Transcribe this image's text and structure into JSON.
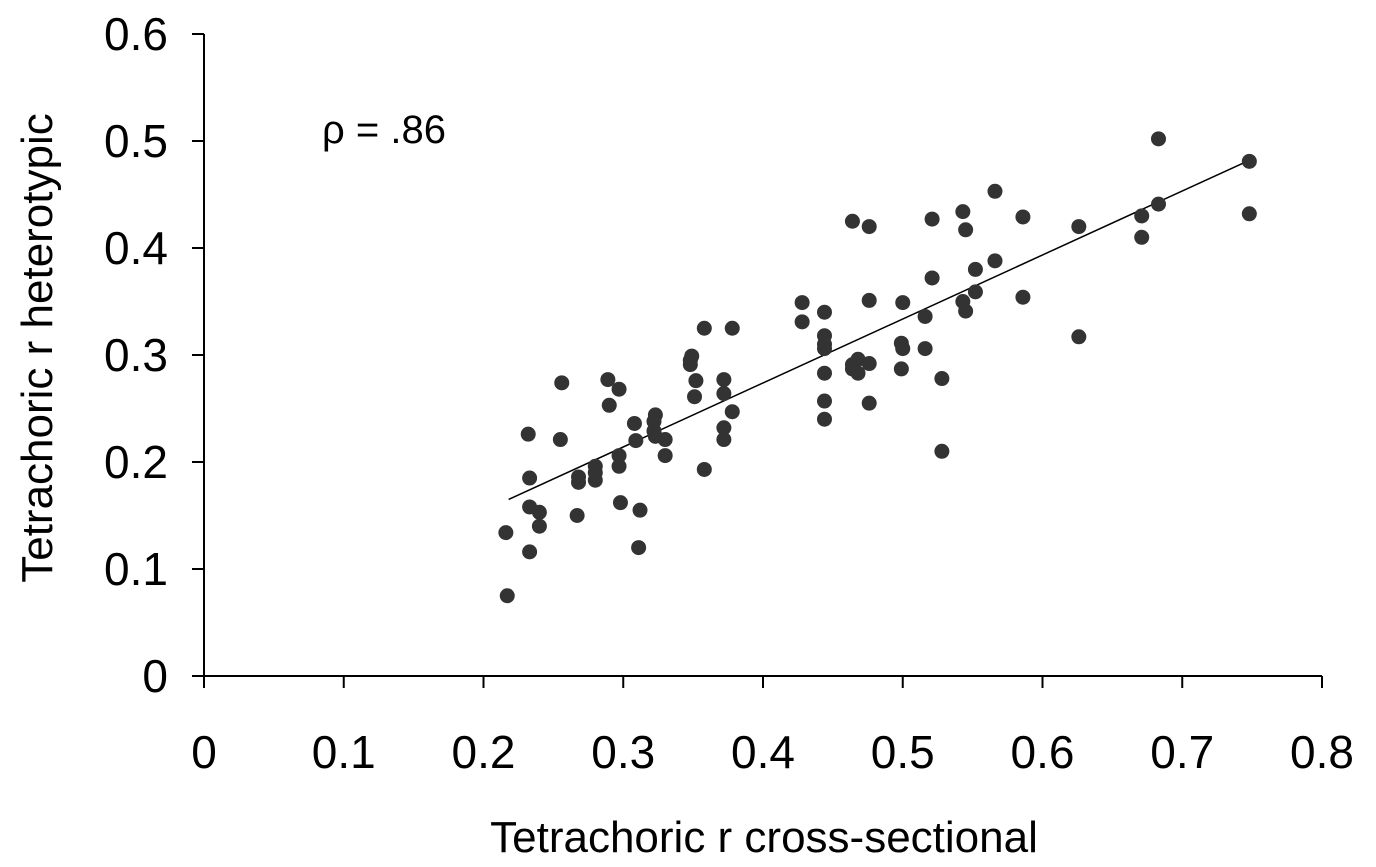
{
  "chart_data": {
    "type": "scatter",
    "title": "",
    "xlabel": "Tetrachoric r cross-sectional",
    "ylabel": "Tetrachoric r heterotypic",
    "xlim": [
      0,
      0.8
    ],
    "ylim": [
      0,
      0.6
    ],
    "x_ticks": [
      "0",
      "0.1",
      "0.2",
      "0.3",
      "0.4",
      "0.5",
      "0.6",
      "0.7",
      "0.8"
    ],
    "y_ticks": [
      "0",
      "0.1",
      "0.2",
      "0.3",
      "0.4",
      "0.5",
      "0.6"
    ],
    "annotation": "ρ = .86",
    "grid": false,
    "legend": "none",
    "point_color": "#333333",
    "trendline": {
      "x": [
        0.218,
        0.748
      ],
      "y": [
        0.165,
        0.482
      ]
    },
    "points": [
      {
        "x": 0.216,
        "y": 0.134
      },
      {
        "x": 0.217,
        "y": 0.075
      },
      {
        "x": 0.232,
        "y": 0.226
      },
      {
        "x": 0.233,
        "y": 0.185
      },
      {
        "x": 0.233,
        "y": 0.158
      },
      {
        "x": 0.233,
        "y": 0.116
      },
      {
        "x": 0.24,
        "y": 0.153
      },
      {
        "x": 0.24,
        "y": 0.14
      },
      {
        "x": 0.255,
        "y": 0.221
      },
      {
        "x": 0.256,
        "y": 0.274
      },
      {
        "x": 0.267,
        "y": 0.15
      },
      {
        "x": 0.268,
        "y": 0.186
      },
      {
        "x": 0.268,
        "y": 0.181
      },
      {
        "x": 0.28,
        "y": 0.196
      },
      {
        "x": 0.28,
        "y": 0.19
      },
      {
        "x": 0.28,
        "y": 0.183
      },
      {
        "x": 0.289,
        "y": 0.277
      },
      {
        "x": 0.29,
        "y": 0.253
      },
      {
        "x": 0.297,
        "y": 0.268
      },
      {
        "x": 0.297,
        "y": 0.206
      },
      {
        "x": 0.297,
        "y": 0.196
      },
      {
        "x": 0.298,
        "y": 0.162
      },
      {
        "x": 0.308,
        "y": 0.236
      },
      {
        "x": 0.309,
        "y": 0.22
      },
      {
        "x": 0.312,
        "y": 0.155
      },
      {
        "x": 0.311,
        "y": 0.12
      },
      {
        "x": 0.322,
        "y": 0.238
      },
      {
        "x": 0.323,
        "y": 0.244
      },
      {
        "x": 0.322,
        "y": 0.229
      },
      {
        "x": 0.323,
        "y": 0.224
      },
      {
        "x": 0.33,
        "y": 0.221
      },
      {
        "x": 0.33,
        "y": 0.206
      },
      {
        "x": 0.348,
        "y": 0.295
      },
      {
        "x": 0.349,
        "y": 0.299
      },
      {
        "x": 0.348,
        "y": 0.291
      },
      {
        "x": 0.352,
        "y": 0.276
      },
      {
        "x": 0.351,
        "y": 0.261
      },
      {
        "x": 0.358,
        "y": 0.325
      },
      {
        "x": 0.358,
        "y": 0.193
      },
      {
        "x": 0.372,
        "y": 0.277
      },
      {
        "x": 0.372,
        "y": 0.264
      },
      {
        "x": 0.372,
        "y": 0.232
      },
      {
        "x": 0.372,
        "y": 0.221
      },
      {
        "x": 0.378,
        "y": 0.325
      },
      {
        "x": 0.378,
        "y": 0.247
      },
      {
        "x": 0.428,
        "y": 0.349
      },
      {
        "x": 0.428,
        "y": 0.331
      },
      {
        "x": 0.444,
        "y": 0.34
      },
      {
        "x": 0.444,
        "y": 0.318
      },
      {
        "x": 0.444,
        "y": 0.31
      },
      {
        "x": 0.444,
        "y": 0.306
      },
      {
        "x": 0.444,
        "y": 0.283
      },
      {
        "x": 0.444,
        "y": 0.257
      },
      {
        "x": 0.444,
        "y": 0.24
      },
      {
        "x": 0.464,
        "y": 0.425
      },
      {
        "x": 0.464,
        "y": 0.291
      },
      {
        "x": 0.464,
        "y": 0.287
      },
      {
        "x": 0.468,
        "y": 0.296
      },
      {
        "x": 0.468,
        "y": 0.283
      },
      {
        "x": 0.476,
        "y": 0.42
      },
      {
        "x": 0.476,
        "y": 0.351
      },
      {
        "x": 0.476,
        "y": 0.292
      },
      {
        "x": 0.476,
        "y": 0.255
      },
      {
        "x": 0.499,
        "y": 0.311
      },
      {
        "x": 0.499,
        "y": 0.287
      },
      {
        "x": 0.5,
        "y": 0.349
      },
      {
        "x": 0.5,
        "y": 0.306
      },
      {
        "x": 0.516,
        "y": 0.336
      },
      {
        "x": 0.516,
        "y": 0.306
      },
      {
        "x": 0.521,
        "y": 0.427
      },
      {
        "x": 0.521,
        "y": 0.372
      },
      {
        "x": 0.528,
        "y": 0.278
      },
      {
        "x": 0.528,
        "y": 0.21
      },
      {
        "x": 0.543,
        "y": 0.434
      },
      {
        "x": 0.543,
        "y": 0.35
      },
      {
        "x": 0.545,
        "y": 0.417
      },
      {
        "x": 0.545,
        "y": 0.341
      },
      {
        "x": 0.552,
        "y": 0.38
      },
      {
        "x": 0.552,
        "y": 0.359
      },
      {
        "x": 0.566,
        "y": 0.453
      },
      {
        "x": 0.566,
        "y": 0.388
      },
      {
        "x": 0.586,
        "y": 0.429
      },
      {
        "x": 0.586,
        "y": 0.354
      },
      {
        "x": 0.626,
        "y": 0.42
      },
      {
        "x": 0.626,
        "y": 0.317
      },
      {
        "x": 0.671,
        "y": 0.43
      },
      {
        "x": 0.671,
        "y": 0.41
      },
      {
        "x": 0.683,
        "y": 0.502
      },
      {
        "x": 0.683,
        "y": 0.441
      },
      {
        "x": 0.748,
        "y": 0.481
      },
      {
        "x": 0.748,
        "y": 0.432
      }
    ]
  }
}
